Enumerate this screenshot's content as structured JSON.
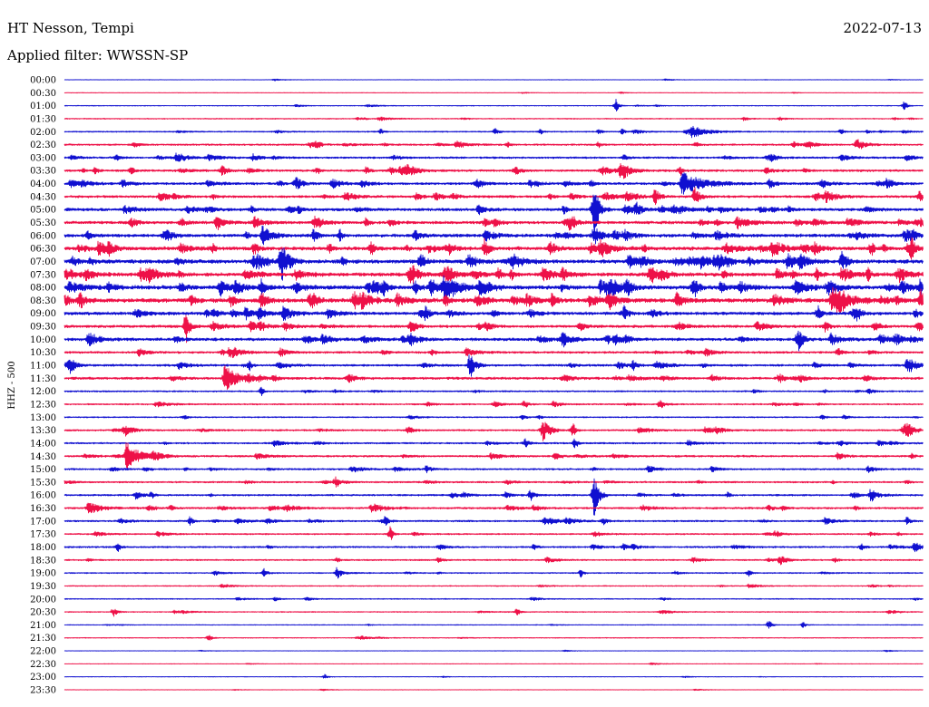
{
  "chart_data": {
    "type": "line",
    "title": "HT Nesson, Tempi",
    "date": "2022-07-13",
    "subtitle": "Applied filter: WWSSN-SP",
    "ylabel": "HHZ - 500",
    "grid": false,
    "colors": {
      "blue": "#1010d0",
      "red": "#ee1148"
    },
    "rows": [
      {
        "label": "00:00",
        "color": "#1010d0",
        "noise": 0.02
      },
      {
        "label": "00:30",
        "color": "#ee1148",
        "noise": 0.02
      },
      {
        "label": "01:00",
        "color": "#1010d0",
        "noise": 0.03
      },
      {
        "label": "01:30",
        "color": "#ee1148",
        "noise": 0.04
      },
      {
        "label": "02:00",
        "color": "#1010d0",
        "noise": 0.05
      },
      {
        "label": "02:30",
        "color": "#ee1148",
        "noise": 0.07
      },
      {
        "label": "03:00",
        "color": "#1010d0",
        "noise": 0.08
      },
      {
        "label": "03:30",
        "color": "#ee1148",
        "noise": 0.09
      },
      {
        "label": "04:00",
        "color": "#1010d0",
        "noise": 0.1
      },
      {
        "label": "04:30",
        "color": "#ee1148",
        "noise": 0.1
      },
      {
        "label": "05:00",
        "color": "#1010d0",
        "noise": 0.12
      },
      {
        "label": "05:30",
        "color": "#ee1148",
        "noise": 0.12
      },
      {
        "label": "06:00",
        "color": "#1010d0",
        "noise": 0.13
      },
      {
        "label": "06:30",
        "color": "#ee1148",
        "noise": 0.15
      },
      {
        "label": "07:00",
        "color": "#1010d0",
        "noise": 0.16
      },
      {
        "label": "07:30",
        "color": "#ee1148",
        "noise": 0.15
      },
      {
        "label": "08:00",
        "color": "#1010d0",
        "noise": 0.17
      },
      {
        "label": "08:30",
        "color": "#ee1148",
        "noise": 0.17
      },
      {
        "label": "09:00",
        "color": "#1010d0",
        "noise": 0.13
      },
      {
        "label": "09:30",
        "color": "#ee1148",
        "noise": 0.11
      },
      {
        "label": "10:00",
        "color": "#1010d0",
        "noise": 0.12
      },
      {
        "label": "10:30",
        "color": "#ee1148",
        "noise": 0.09
      },
      {
        "label": "11:00",
        "color": "#1010d0",
        "noise": 0.09
      },
      {
        "label": "11:30",
        "color": "#ee1148",
        "noise": 0.1
      },
      {
        "label": "12:00",
        "color": "#1010d0",
        "noise": 0.06
      },
      {
        "label": "12:30",
        "color": "#ee1148",
        "noise": 0.06
      },
      {
        "label": "13:00",
        "color": "#1010d0",
        "noise": 0.05
      },
      {
        "label": "13:30",
        "color": "#ee1148",
        "noise": 0.07
      },
      {
        "label": "14:00",
        "color": "#1010d0",
        "noise": 0.07
      },
      {
        "label": "14:30",
        "color": "#ee1148",
        "noise": 0.08
      },
      {
        "label": "15:00",
        "color": "#1010d0",
        "noise": 0.07
      },
      {
        "label": "15:30",
        "color": "#ee1148",
        "noise": 0.07
      },
      {
        "label": "16:00",
        "color": "#1010d0",
        "noise": 0.07
      },
      {
        "label": "16:30",
        "color": "#ee1148",
        "noise": 0.08
      },
      {
        "label": "17:00",
        "color": "#1010d0",
        "noise": 0.07
      },
      {
        "label": "17:30",
        "color": "#ee1148",
        "noise": 0.06
      },
      {
        "label": "18:00",
        "color": "#1010d0",
        "noise": 0.07
      },
      {
        "label": "18:30",
        "color": "#ee1148",
        "noise": 0.06
      },
      {
        "label": "19:00",
        "color": "#1010d0",
        "noise": 0.05
      },
      {
        "label": "19:30",
        "color": "#ee1148",
        "noise": 0.04
      },
      {
        "label": "20:00",
        "color": "#1010d0",
        "noise": 0.04
      },
      {
        "label": "20:30",
        "color": "#ee1148",
        "noise": 0.04
      },
      {
        "label": "21:00",
        "color": "#1010d0",
        "noise": 0.03
      },
      {
        "label": "21:30",
        "color": "#ee1148",
        "noise": 0.03
      },
      {
        "label": "22:00",
        "color": "#1010d0",
        "noise": 0.02
      },
      {
        "label": "22:30",
        "color": "#ee1148",
        "noise": 0.02
      },
      {
        "label": "23:00",
        "color": "#1010d0",
        "noise": 0.02
      },
      {
        "label": "23:30",
        "color": "#ee1148",
        "noise": 0.02
      }
    ],
    "events": [
      {
        "t": "01:19:17",
        "amp": 0.55,
        "dur": 15
      },
      {
        "t": "01:29:22",
        "amp": 0.35,
        "dur": 15
      },
      {
        "t": "01:53:45",
        "amp": 0.15,
        "dur": 30
      },
      {
        "t": "01:55:01",
        "amp": 0.12,
        "dur": 30
      },
      {
        "t": "02:11:04",
        "amp": 0.2,
        "dur": 15
      },
      {
        "t": "02:15:04",
        "amp": 0.3,
        "dur": 15
      },
      {
        "t": "02:16:39",
        "amp": 0.2,
        "dur": 15
      },
      {
        "t": "02:18:41",
        "amp": 0.2,
        "dur": 15
      },
      {
        "t": "02:19:30",
        "amp": 0.2,
        "dur": 15
      },
      {
        "t": "02:21:55",
        "amp": 0.4,
        "dur": 90
      },
      {
        "t": "02:27:09",
        "amp": 0.25,
        "dur": 15
      },
      {
        "t": "02:32:27",
        "amp": 0.2,
        "dur": 30
      },
      {
        "t": "02:38:51",
        "amp": 0.3,
        "dur": 15
      },
      {
        "t": "02:45:30",
        "amp": 0.2,
        "dur": 15
      },
      {
        "t": "02:48:41",
        "amp": 0.2,
        "dur": 15
      },
      {
        "t": "02:55:30",
        "amp": 0.2,
        "dur": 30
      },
      {
        "t": "03:01:48",
        "amp": 0.2,
        "dur": 30
      },
      {
        "t": "03:03:56",
        "amp": 0.35,
        "dur": 60
      },
      {
        "t": "03:23:07",
        "amp": 0.15,
        "dur": 40
      },
      {
        "t": "03:35:31",
        "amp": 0.35,
        "dur": 30
      },
      {
        "t": "03:38:51",
        "amp": 0.25,
        "dur": 15
      },
      {
        "t": "03:45:44",
        "amp": 0.35,
        "dur": 30
      },
      {
        "t": "03:49:28",
        "amp": 0.85,
        "dur": 40
      },
      {
        "t": "03:51:32",
        "amp": 0.3,
        "dur": 15
      },
      {
        "t": "04:08:03",
        "amp": 0.2,
        "dur": 40
      },
      {
        "t": "04:14:24",
        "amp": 0.35,
        "dur": 40
      },
      {
        "t": "04:16:18",
        "amp": 0.35,
        "dur": 15
      },
      {
        "t": "04:18:25",
        "amp": 0.25,
        "dur": 15
      },
      {
        "t": "04:21:36",
        "amp": 0.85,
        "dur": 120
      },
      {
        "t": "04:26:27",
        "amp": 0.35,
        "dur": 40
      },
      {
        "t": "04:35:12",
        "amp": 0.2,
        "dur": 15
      },
      {
        "t": "04:50:39",
        "amp": 0.6,
        "dur": 30
      },
      {
        "t": "04:52:02",
        "amp": 0.65,
        "dur": 30
      },
      {
        "t": "05:07:54",
        "amp": 0.25,
        "dur": 40
      },
      {
        "t": "05:17:28",
        "amp": 0.35,
        "dur": 15
      },
      {
        "t": "05:18:31",
        "amp": 2.0,
        "dur": 25
      },
      {
        "t": "05:22:29",
        "amp": 0.2,
        "dur": 30
      },
      {
        "t": "05:34:05",
        "amp": 0.3,
        "dur": 30
      },
      {
        "t": "05:35:22",
        "amp": 0.25,
        "dur": 15
      },
      {
        "t": "05:41:23",
        "amp": 0.3,
        "dur": 30
      },
      {
        "t": "05:45:02",
        "amp": 0.3,
        "dur": 30
      },
      {
        "t": "05:52:48",
        "amp": 0.3,
        "dur": 15
      },
      {
        "t": "06:06:22",
        "amp": 0.3,
        "dur": 15
      },
      {
        "t": "06:09:38",
        "amp": 0.4,
        "dur": 15
      },
      {
        "t": "06:14:43",
        "amp": 0.4,
        "dur": 60
      },
      {
        "t": "06:18:31",
        "amp": 0.25,
        "dur": 15
      },
      {
        "t": "06:35:12",
        "amp": 0.3,
        "dur": 15
      },
      {
        "t": "06:50:16",
        "amp": 0.3,
        "dur": 15
      },
      {
        "t": "06:53:07",
        "amp": 0.35,
        "dur": 90
      },
      {
        "t": "06:55:49",
        "amp": 0.35,
        "dur": 40
      },
      {
        "t": "06:58:12",
        "amp": 0.55,
        "dur": 20
      },
      {
        "t": "06:59:37",
        "amp": 0.55,
        "dur": 20
      },
      {
        "t": "07:00:17",
        "amp": 0.3,
        "dur": 30
      },
      {
        "t": "07:07:35",
        "amp": 1.6,
        "dur": 40
      },
      {
        "t": "07:27:11",
        "amp": 0.75,
        "dur": 30
      },
      {
        "t": "07:42:11",
        "amp": 0.35,
        "dur": 15
      },
      {
        "t": "07:43:17",
        "amp": 0.45,
        "dur": 30
      },
      {
        "t": "07:45:11",
        "amp": 0.55,
        "dur": 15
      },
      {
        "t": "07:50:54",
        "amp": 0.3,
        "dur": 40
      },
      {
        "t": "07:58:06",
        "amp": 0.45,
        "dur": 15
      },
      {
        "t": "08:01:33",
        "amp": 0.3,
        "dur": 40
      },
      {
        "t": "08:05:27",
        "amp": 0.6,
        "dur": 30
      },
      {
        "t": "08:13:17",
        "amp": 1.0,
        "dur": 80
      },
      {
        "t": "08:22:00",
        "amp": 0.6,
        "dur": 30
      },
      {
        "t": "08:30:32",
        "amp": 0.6,
        "dur": 30
      },
      {
        "t": "08:36:53",
        "amp": 0.6,
        "dur": 30
      },
      {
        "t": "08:59:56",
        "amp": 0.4,
        "dur": 15
      },
      {
        "t": "09:02:30",
        "amp": 0.3,
        "dur": 60
      },
      {
        "t": "09:19:34",
        "amp": 0.7,
        "dur": 20
      },
      {
        "t": "09:26:21",
        "amp": 0.65,
        "dur": 20
      },
      {
        "t": "09:34:15",
        "amp": 1.2,
        "dur": 20
      },
      {
        "t": "09:35:12",
        "amp": 0.4,
        "dur": 15
      },
      {
        "t": "09:56:36",
        "amp": 0.45,
        "dur": 20
      },
      {
        "t": "10:00:51",
        "amp": 0.5,
        "dur": 60
      },
      {
        "t": "10:19:38",
        "amp": 0.3,
        "dur": 30
      },
      {
        "t": "10:25:39",
        "amp": 1.0,
        "dur": 25
      },
      {
        "t": "11:00:13",
        "amp": 0.55,
        "dur": 25
      },
      {
        "t": "11:06:28",
        "amp": 0.4,
        "dur": 15
      },
      {
        "t": "11:14:11",
        "amp": 1.0,
        "dur": 30
      },
      {
        "t": "11:29:28",
        "amp": 0.55,
        "dur": 30
      },
      {
        "t": "11:35:37",
        "amp": 1.0,
        "dur": 70
      },
      {
        "t": "12:06:53",
        "amp": 0.35,
        "dur": 15
      },
      {
        "t": "12:46:05",
        "amp": 0.3,
        "dur": 20
      },
      {
        "t": "12:50:48",
        "amp": 0.35,
        "dur": 30
      },
      {
        "t": "13:42:01",
        "amp": 0.3,
        "dur": 30
      },
      {
        "t": "13:46:43",
        "amp": 0.9,
        "dur": 40
      },
      {
        "t": "13:47:47",
        "amp": 0.6,
        "dur": 15
      },
      {
        "t": "13:59:28",
        "amp": 0.4,
        "dur": 30
      },
      {
        "t": "14:16:08",
        "amp": 0.4,
        "dur": 15
      },
      {
        "t": "14:17:51",
        "amp": 0.4,
        "dur": 15
      },
      {
        "t": "14:32:11",
        "amp": 1.1,
        "dur": 70
      },
      {
        "t": "15:12:39",
        "amp": 0.25,
        "dur": 30
      },
      {
        "t": "15:20:25",
        "amp": 0.3,
        "dur": 40
      },
      {
        "t": "15:39:29",
        "amp": 0.35,
        "dur": 30
      },
      {
        "t": "16:02:30",
        "amp": 0.3,
        "dur": 40
      },
      {
        "t": "16:16:18",
        "amp": 0.45,
        "dur": 20
      },
      {
        "t": "16:18:31",
        "amp": 1.8,
        "dur": 25
      },
      {
        "t": "16:28:12",
        "amp": 0.45,
        "dur": 15
      },
      {
        "t": "16:30:51",
        "amp": 0.45,
        "dur": 70
      },
      {
        "t": "16:40:45",
        "amp": 0.35,
        "dur": 70
      },
      {
        "t": "17:04:24",
        "amp": 0.35,
        "dur": 15
      },
      {
        "t": "17:11:14",
        "amp": 0.35,
        "dur": 15
      },
      {
        "t": "17:16:47",
        "amp": 0.3,
        "dur": 80
      },
      {
        "t": "17:29:28",
        "amp": 0.35,
        "dur": 15
      },
      {
        "t": "17:41:23",
        "amp": 0.6,
        "dur": 15
      },
      {
        "t": "18:01:52",
        "amp": 0.35,
        "dur": 15
      },
      {
        "t": "18:27:52",
        "amp": 0.3,
        "dur": 15
      },
      {
        "t": "18:55:01",
        "amp": 0.3,
        "dur": 40
      },
      {
        "t": "19:07:00",
        "amp": 0.35,
        "dur": 15
      },
      {
        "t": "19:09:33",
        "amp": 0.35,
        "dur": 15
      },
      {
        "t": "19:18:03",
        "amp": 0.3,
        "dur": 15
      },
      {
        "t": "19:23:55",
        "amp": 0.3,
        "dur": 15
      },
      {
        "t": "20:31:43",
        "amp": 0.35,
        "dur": 20
      },
      {
        "t": "20:45:49",
        "amp": 0.3,
        "dur": 15
      },
      {
        "t": "21:24:38",
        "amp": 0.4,
        "dur": 15
      },
      {
        "t": "21:25:49",
        "amp": 0.25,
        "dur": 15
      },
      {
        "t": "21:35:03",
        "amp": 0.3,
        "dur": 15
      },
      {
        "t": "23:09:06",
        "amp": 0.2,
        "dur": 15
      }
    ]
  }
}
